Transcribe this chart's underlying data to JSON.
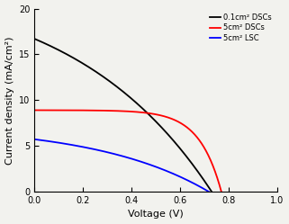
{
  "title": "",
  "xlabel": "Voltage (V)",
  "ylabel": "Current density (mA/cm²)",
  "xlim": [
    0.0,
    1.0
  ],
  "ylim": [
    0.0,
    20.0
  ],
  "xticks": [
    0.0,
    0.2,
    0.4,
    0.6,
    0.8,
    1.0
  ],
  "yticks": [
    0,
    5,
    10,
    15,
    20
  ],
  "legend_labels": [
    "0.1cm² DSCs",
    "5cm² DSCs",
    "5cm² LSC"
  ],
  "black_curve": {
    "jsc": 16.7,
    "voc": 0.73,
    "n": 22
  },
  "red_curve": {
    "jsc": 8.9,
    "voc": 0.77,
    "n": 3.5
  },
  "blue_curve": {
    "jsc": 5.72,
    "voc": 0.718,
    "n": 18
  },
  "background_color": "#f2f2ee",
  "line_width": 1.3
}
